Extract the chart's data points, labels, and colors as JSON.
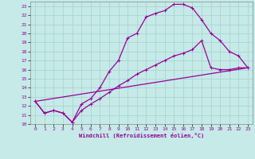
{
  "xlabel": "Windchill (Refroidissement éolien,°C)",
  "background_color": "#c5eae8",
  "grid_color": "#aad4d2",
  "line_color": "#990099",
  "xlim": [
    -0.5,
    23.5
  ],
  "ylim": [
    10,
    23.5
  ],
  "xticks": [
    0,
    1,
    2,
    3,
    4,
    5,
    6,
    7,
    8,
    9,
    10,
    11,
    12,
    13,
    14,
    15,
    16,
    17,
    18,
    19,
    20,
    21,
    22,
    23
  ],
  "yticks": [
    10,
    11,
    12,
    13,
    14,
    15,
    16,
    17,
    18,
    19,
    20,
    21,
    22,
    23
  ],
  "line1_x": [
    0,
    1,
    2,
    3,
    4,
    5,
    6,
    7,
    8,
    9,
    10,
    11,
    12,
    13,
    14,
    15,
    16,
    17,
    18,
    19,
    20,
    21,
    22,
    23
  ],
  "line1_y": [
    12.5,
    11.2,
    11.5,
    11.2,
    10.2,
    12.2,
    12.8,
    14.0,
    15.8,
    17.0,
    19.5,
    20.0,
    21.8,
    22.2,
    22.5,
    23.2,
    23.2,
    22.8,
    21.5,
    20.0,
    19.2,
    18.0,
    17.5,
    16.2
  ],
  "line2_x": [
    0,
    1,
    2,
    3,
    4,
    5,
    6,
    7,
    8,
    9,
    10,
    11,
    12,
    13,
    14,
    15,
    16,
    17,
    18,
    19,
    20,
    21,
    22,
    23
  ],
  "line2_y": [
    12.5,
    11.2,
    11.5,
    11.2,
    10.2,
    11.5,
    12.2,
    12.8,
    13.5,
    14.2,
    14.8,
    15.5,
    16.0,
    16.5,
    17.0,
    17.5,
    17.8,
    18.2,
    19.2,
    16.2,
    16.0,
    16.0,
    16.2,
    16.2
  ],
  "line3_x": [
    0,
    23
  ],
  "line3_y": [
    12.5,
    16.2
  ]
}
